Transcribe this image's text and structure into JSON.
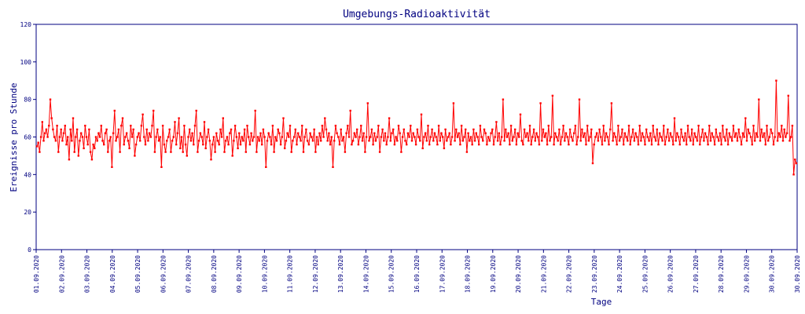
{
  "chart_data": {
    "type": "line",
    "title": "Umgebungs-Radioaktivität",
    "xlabel": "Tage",
    "ylabel": "Ereignisse pro Stunde",
    "ylim": [
      0,
      120
    ],
    "yticks": [
      "0",
      "20",
      "40",
      "60",
      "80",
      "100",
      "120"
    ],
    "xticks": [
      "01.09.2020",
      "02.09.2020",
      "03.09.2020",
      "04.09.2020",
      "05.09.2020",
      "06.09.2020",
      "07.09.2020",
      "08.09.2020",
      "09.09.2020",
      "10.09.2020",
      "11.09.2020",
      "12.09.2020",
      "13.09.2020",
      "14.09.2020",
      "15.09.2020",
      "16.09.2020",
      "17.09.2020",
      "18.09.2020",
      "19.09.2020",
      "20.09.2020",
      "21.09.2020",
      "22.09.2020",
      "23.09.2020",
      "24.09.2020",
      "25.09.2020",
      "26.09.2020",
      "27.09.2020",
      "28.09.2020",
      "29.09.2020",
      "30.09.2020",
      "30.09.2020"
    ],
    "grid": false,
    "series": [
      {
        "color": "#ff0000",
        "values": [
          55,
          57,
          52,
          60,
          68,
          58,
          62,
          64,
          60,
          66,
          80,
          70,
          64,
          60,
          58,
          66,
          52,
          60,
          64,
          58,
          62,
          66,
          56,
          60,
          48,
          64,
          58,
          70,
          52,
          60,
          64,
          50,
          58,
          62,
          60,
          54,
          66,
          60,
          56,
          64,
          52,
          48,
          56,
          54,
          60,
          58,
          62,
          60,
          66,
          58,
          56,
          62,
          64,
          52,
          58,
          60,
          44,
          62,
          74,
          58,
          60,
          64,
          52,
          66,
          70,
          56,
          60,
          62,
          58,
          54,
          66,
          60,
          64,
          50,
          56,
          60,
          62,
          58,
          66,
          72,
          60,
          56,
          64,
          58,
          62,
          60,
          66,
          74,
          52,
          60,
          64,
          58,
          60,
          44,
          66,
          56,
          52,
          58,
          60,
          64,
          52,
          58,
          60,
          68,
          56,
          62,
          70,
          54,
          60,
          52,
          66,
          56,
          50,
          60,
          64,
          58,
          62,
          56,
          66,
          74,
          52,
          58,
          62,
          60,
          56,
          68,
          54,
          60,
          64,
          58,
          48,
          56,
          60,
          52,
          62,
          58,
          56,
          64,
          60,
          70,
          52,
          58,
          60,
          56,
          62,
          64,
          50,
          58,
          66,
          60,
          54,
          62,
          56,
          60,
          58,
          64,
          52,
          66,
          60,
          56,
          62,
          58,
          60,
          74,
          52,
          60,
          58,
          62,
          56,
          64,
          60,
          44,
          58,
          62,
          60,
          56,
          66,
          52,
          60,
          58,
          64,
          62,
          56,
          60,
          70,
          54,
          58,
          62,
          60,
          66,
          52,
          58,
          60,
          64,
          56,
          62,
          60,
          58,
          66,
          52,
          60,
          64,
          58,
          56,
          62,
          60,
          58,
          64,
          52,
          60,
          56,
          62,
          58,
          66,
          60,
          70,
          64,
          58,
          62,
          56,
          60,
          44,
          58,
          66,
          62,
          60,
          56,
          64,
          58,
          60,
          52,
          62,
          66,
          60,
          74,
          56,
          58,
          62,
          60,
          64,
          56,
          60,
          66,
          58,
          62,
          52,
          60,
          78,
          58,
          60,
          64,
          56,
          62,
          58,
          60,
          66,
          52,
          60,
          64,
          58,
          62,
          56,
          60,
          70,
          58,
          62,
          64,
          56,
          60,
          58,
          66,
          62,
          52,
          60,
          64,
          58,
          56,
          62,
          60,
          66,
          58,
          62,
          60,
          56,
          64,
          60,
          58,
          72,
          54,
          60,
          62,
          58,
          66,
          56,
          60,
          64,
          58,
          62,
          60,
          56,
          66,
          58,
          62,
          60,
          54,
          64,
          58,
          60,
          62,
          56,
          60,
          78,
          58,
          64,
          60,
          62,
          56,
          66,
          58,
          60,
          64,
          52,
          62,
          58,
          60,
          56,
          64,
          58,
          62,
          60,
          56,
          66,
          60,
          58,
          64,
          62,
          56,
          60,
          58,
          62,
          64,
          56,
          60,
          68,
          58,
          62,
          56,
          60,
          80,
          58,
          64,
          60,
          62,
          56,
          66,
          58,
          60,
          64,
          56,
          62,
          60,
          72,
          58,
          56,
          64,
          60,
          62,
          58,
          66,
          56,
          60,
          64,
          58,
          62,
          60,
          56,
          78,
          58,
          64,
          60,
          62,
          56,
          66,
          58,
          60,
          82,
          56,
          62,
          60,
          58,
          64,
          56,
          60,
          66,
          58,
          62,
          60,
          56,
          64,
          60,
          58,
          62,
          66,
          56,
          60,
          80,
          58,
          64,
          60,
          62,
          56,
          66,
          58,
          60,
          64,
          46,
          56,
          60,
          62,
          58,
          64,
          60,
          56,
          66,
          58,
          62,
          60,
          56,
          64,
          78,
          58,
          62,
          60,
          56,
          66,
          58,
          60,
          64,
          56,
          62,
          60,
          58,
          66,
          56,
          60,
          64,
          58,
          62,
          60,
          56,
          66,
          58,
          62,
          60,
          56,
          64,
          60,
          58,
          62,
          56,
          66,
          60,
          58,
          64,
          56,
          62,
          60,
          58,
          66,
          56,
          60,
          64,
          58,
          62,
          60,
          56,
          70,
          58,
          62,
          60,
          56,
          64,
          60,
          58,
          62,
          56,
          66,
          60,
          58,
          64,
          56,
          62,
          60,
          58,
          66,
          56,
          60,
          64,
          58,
          62,
          60,
          56,
          66,
          58,
          62,
          60,
          56,
          64,
          60,
          58,
          62,
          56,
          66,
          60,
          58,
          64,
          56,
          62,
          60,
          58,
          66,
          60,
          62,
          58,
          64,
          60,
          56,
          62,
          60,
          70,
          58,
          64,
          62,
          60,
          56,
          66,
          58,
          62,
          60,
          80,
          58,
          64,
          60,
          62,
          56,
          66,
          58,
          60,
          64,
          62,
          56,
          60,
          90,
          58,
          62,
          60,
          66,
          58,
          64,
          60,
          62,
          82,
          58,
          60,
          66,
          40,
          48,
          46
        ]
      }
    ]
  }
}
